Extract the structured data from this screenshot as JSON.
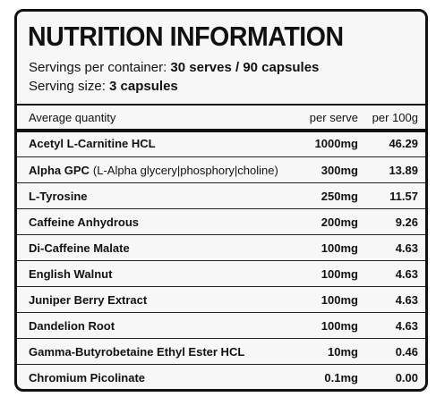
{
  "header": {
    "title": "NUTRITION INFORMATION",
    "servings_per_container": {
      "label": "Servings per container:",
      "value": "30 serves / 90 capsules"
    },
    "serving_size": {
      "label": "Serving size:",
      "value": "3 capsules"
    }
  },
  "table": {
    "columns": [
      "Average quantity",
      "per serve",
      "per 100g"
    ],
    "rows": [
      {
        "name": "Acetyl L-Carnitine HCL",
        "per_serve": "1000mg",
        "per_100g": "46.29"
      },
      {
        "name": "Alpha GPC",
        "note": "(L-Alpha glycery|phosphory|choline)",
        "per_serve": "300mg",
        "per_100g": "13.89"
      },
      {
        "name": "L-Tyrosine",
        "per_serve": "250mg",
        "per_100g": "11.57"
      },
      {
        "name": "Caffeine Anhydrous",
        "per_serve": "200mg",
        "per_100g": "9.26"
      },
      {
        "name": "Di-Caffeine Malate",
        "per_serve": "100mg",
        "per_100g": "4.63"
      },
      {
        "name": "English Walnut",
        "per_serve": "100mg",
        "per_100g": "4.63"
      },
      {
        "name": "Juniper Berry Extract",
        "per_serve": "100mg",
        "per_100g": "4.63"
      },
      {
        "name": "Dandelion Root",
        "per_serve": "100mg",
        "per_100g": "4.63"
      },
      {
        "name": "Gamma-Butyrobetaine Ethyl Ester HCL",
        "per_serve": "10mg",
        "per_100g": "0.46"
      },
      {
        "name": "Chromium Picolinate",
        "per_serve": "0.1mg",
        "per_100g": "0.00"
      }
    ]
  }
}
